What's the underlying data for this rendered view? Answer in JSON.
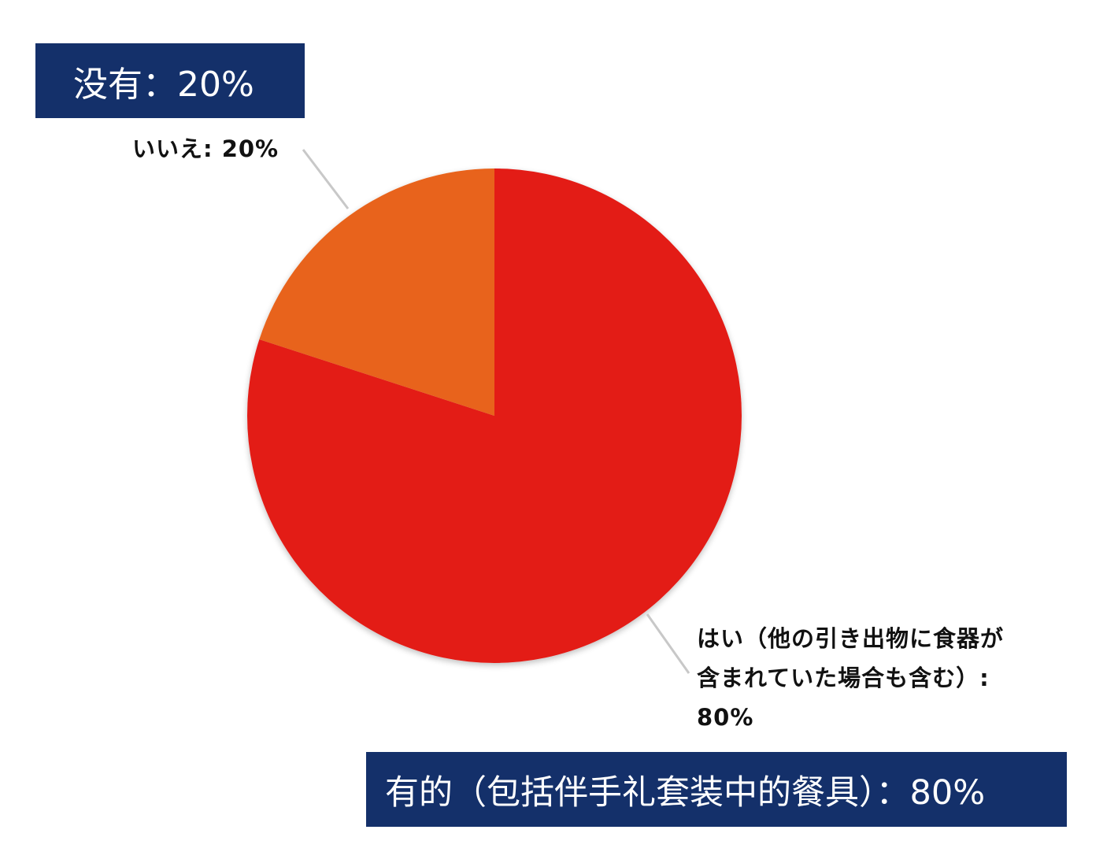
{
  "banners": {
    "no": "没有：20%",
    "yes": "有的（包括伴手礼套装中的餐具）：80%"
  },
  "chart_data": {
    "type": "pie",
    "slices": [
      {
        "label": "はい（他の引き出物に食器が含まれていた場合も含む）: 80%",
        "value": 80,
        "color": "#e31b17"
      },
      {
        "label": "いいえ: 20%",
        "value": 20,
        "color": "#e8641a"
      }
    ]
  },
  "colors": {
    "banner_bg": "#14306a",
    "leader_line": "#c8c8c8"
  }
}
